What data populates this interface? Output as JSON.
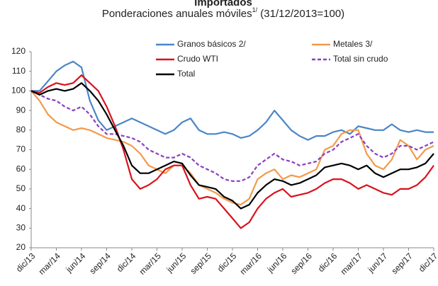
{
  "chart_data": {
    "type": "line",
    "title": "Importados",
    "subtitle": "Ponderaciones anuales móviles",
    "subtitle_note": "1/",
    "subtitle_rest": " (31/12/2013=100)",
    "categories": [
      "dic/13",
      null,
      null,
      "mar/14",
      null,
      null,
      "jun/14",
      null,
      null,
      "sep/14",
      null,
      null,
      "dic/14",
      null,
      null,
      "mar/15",
      null,
      null,
      "jun/15",
      null,
      null,
      "sep/15",
      null,
      null,
      "dic/15",
      null,
      null,
      "mar/16",
      null,
      null,
      "jun/16",
      null,
      null,
      "sep/16",
      null,
      null,
      "dic/16",
      null,
      null,
      "mar/17",
      null,
      null,
      "jun/17",
      null,
      null,
      "sep/17",
      null,
      null,
      "dic/17"
    ],
    "series": [
      {
        "name": "Granos básicos 2/",
        "color": "#4a86c8",
        "dash": false,
        "values": [
          100,
          100,
          105,
          110,
          113,
          115,
          112,
          95,
          85,
          80,
          82,
          84,
          86,
          84,
          82,
          80,
          78,
          80,
          84,
          86,
          80,
          78,
          78,
          79,
          78,
          76,
          77,
          80,
          84,
          90,
          85,
          80,
          77,
          75,
          77,
          77,
          79,
          80,
          78,
          82,
          81,
          80,
          80,
          83,
          80,
          79,
          80,
          79,
          79
        ]
      },
      {
        "name": "Metales 3/",
        "color": "#f39a4b",
        "dash": false,
        "values": [
          100,
          95,
          88,
          84,
          82,
          80,
          81,
          80,
          78,
          76,
          75,
          74,
          72,
          68,
          62,
          60,
          58,
          62,
          62,
          58,
          52,
          50,
          48,
          45,
          43,
          42,
          45,
          55,
          58,
          60,
          55,
          57,
          56,
          58,
          60,
          70,
          72,
          78,
          80,
          80,
          68,
          62,
          60,
          65,
          75,
          72,
          65,
          70,
          72
        ]
      },
      {
        "name": "Crudo WTI",
        "color": "#d9121b",
        "dash": false,
        "values": [
          100,
          99,
          102,
          104,
          103,
          104,
          108,
          104,
          100,
          92,
          82,
          70,
          55,
          50,
          52,
          55,
          60,
          62,
          62,
          52,
          45,
          46,
          45,
          40,
          35,
          30,
          33,
          40,
          45,
          48,
          50,
          46,
          47,
          48,
          50,
          53,
          55,
          55,
          53,
          50,
          52,
          50,
          48,
          47,
          50,
          50,
          52,
          56,
          62
        ]
      },
      {
        "name": "Total sin crudo",
        "color": "#8a3fc0",
        "dash": true,
        "values": [
          100,
          98,
          96,
          95,
          92,
          90,
          92,
          88,
          82,
          78,
          78,
          77,
          76,
          74,
          70,
          68,
          66,
          66,
          68,
          66,
          62,
          60,
          58,
          55,
          54,
          54,
          56,
          62,
          65,
          68,
          65,
          64,
          62,
          63,
          64,
          68,
          70,
          74,
          76,
          78,
          72,
          68,
          66,
          68,
          72,
          72,
          70,
          72,
          74
        ]
      },
      {
        "name": "Total",
        "color": "#000000",
        "dash": false,
        "values": [
          100,
          98,
          100,
          101,
          100,
          101,
          104,
          100,
          95,
          88,
          80,
          72,
          62,
          58,
          58,
          60,
          62,
          64,
          63,
          57,
          52,
          51,
          50,
          46,
          44,
          40,
          42,
          48,
          52,
          55,
          54,
          52,
          53,
          55,
          57,
          61,
          62,
          63,
          62,
          60,
          62,
          58,
          56,
          58,
          60,
          60,
          61,
          63,
          68
        ]
      }
    ],
    "ylim": [
      20,
      120
    ],
    "yticks": [
      20,
      30,
      40,
      50,
      60,
      70,
      80,
      90,
      100,
      110,
      120
    ]
  }
}
